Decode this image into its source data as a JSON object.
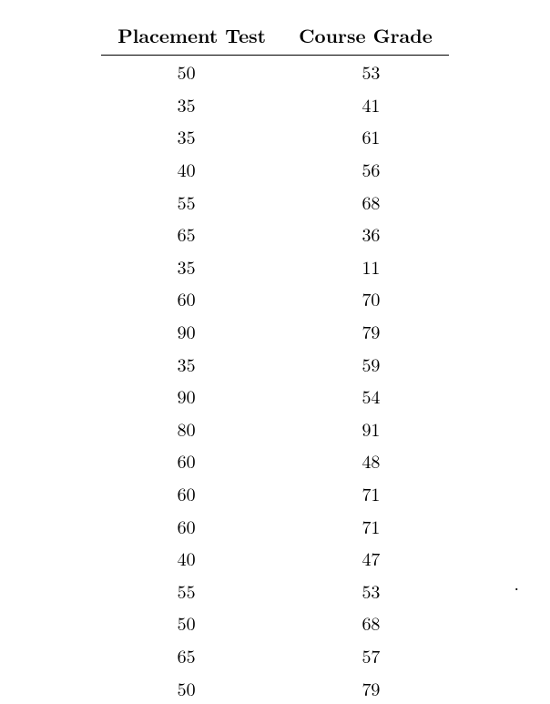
{
  "table": {
    "type": "table",
    "background_color": "#ffffff",
    "text_color": "#000000",
    "header_fontsize": 21,
    "cell_fontsize": 20,
    "font_family": "Computer Modern / serif",
    "border_color": "#000000",
    "columns": [
      "Placement Test",
      "Course Grade"
    ],
    "rows": [
      [
        50,
        53
      ],
      [
        35,
        41
      ],
      [
        35,
        61
      ],
      [
        40,
        56
      ],
      [
        55,
        68
      ],
      [
        65,
        36
      ],
      [
        35,
        11
      ],
      [
        60,
        70
      ],
      [
        90,
        79
      ],
      [
        35,
        59
      ],
      [
        90,
        54
      ],
      [
        80,
        91
      ],
      [
        60,
        48
      ],
      [
        60,
        71
      ],
      [
        60,
        71
      ],
      [
        40,
        47
      ],
      [
        55,
        53
      ],
      [
        50,
        68
      ],
      [
        65,
        57
      ],
      [
        50,
        79
      ]
    ]
  },
  "trailing_dot": "."
}
